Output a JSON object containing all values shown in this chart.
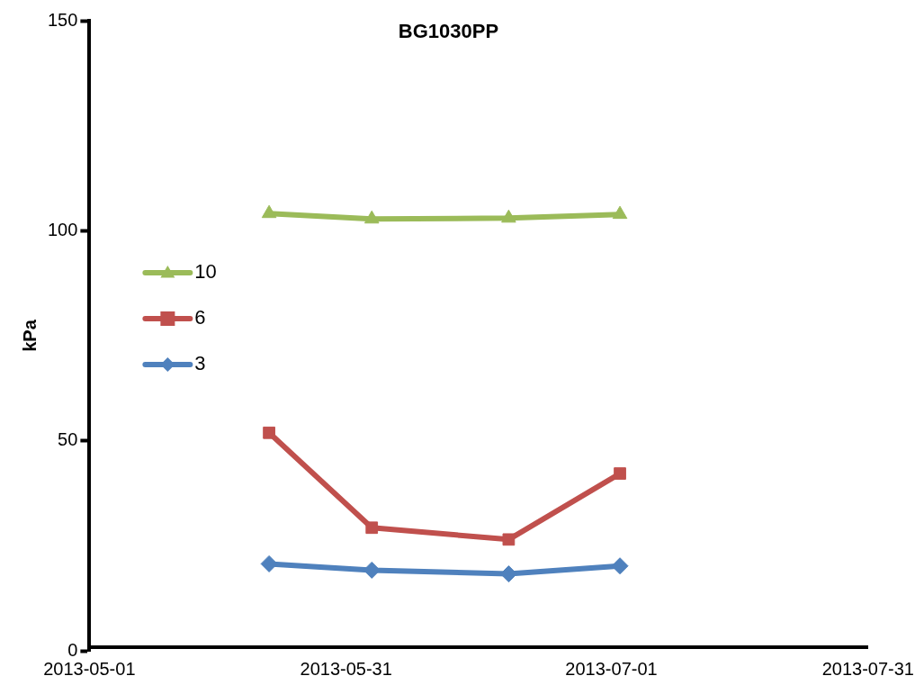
{
  "chart_data": {
    "type": "line",
    "title": "BG1030PP",
    "ylabel": "kPa",
    "x": [
      "2013-05-22",
      "2013-06-03",
      "2013-06-19",
      "2013-07-02"
    ],
    "series": [
      {
        "name": "3",
        "color": "#4f81bd",
        "marker": "diamond",
        "values": [
          20.7,
          19.2,
          18.3,
          20.2
        ]
      },
      {
        "name": "6",
        "color": "#c0504d",
        "marker": "square",
        "values": [
          51.9,
          29.3,
          26.5,
          42.2
        ]
      },
      {
        "name": "10",
        "color": "#9bbb59",
        "marker": "triangle",
        "values": [
          104.1,
          102.8,
          103.0,
          103.9
        ]
      }
    ],
    "xlim": [
      "2013-05-01",
      "2013-07-31"
    ],
    "xticks": [
      "2013-05-01",
      "2013-05-31",
      "2013-07-01",
      "2013-07-31"
    ],
    "ylim": [
      0,
      150
    ],
    "yticks": [
      0,
      50,
      100,
      150
    ],
    "grid": false,
    "legend": "top left",
    "line_style": "solid"
  }
}
